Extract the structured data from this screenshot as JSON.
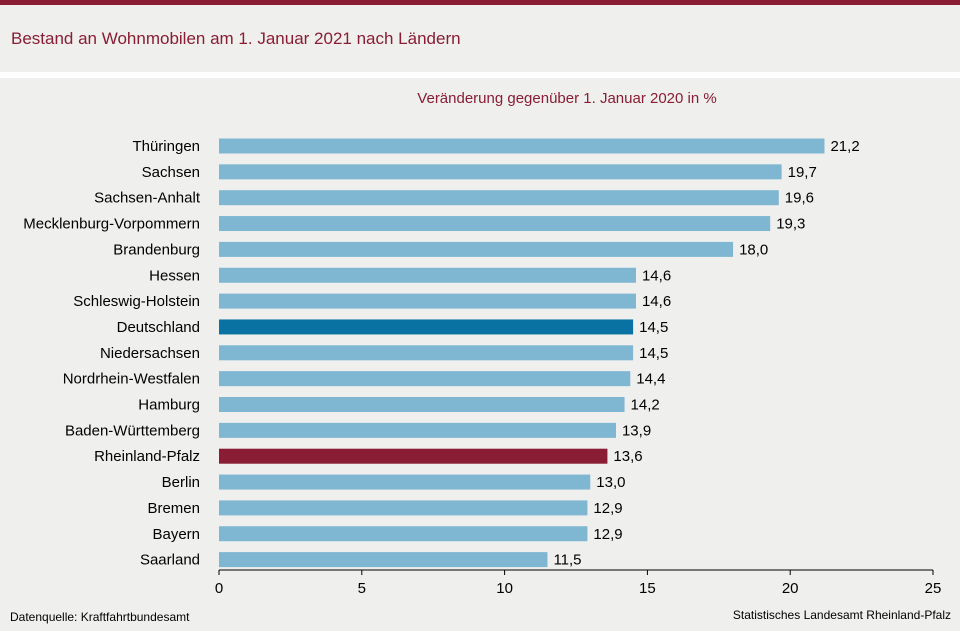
{
  "header": {
    "title": "Bestand an Wohnmobilen am 1. Januar 2021 nach Ländern"
  },
  "footer": {
    "source": "Datenquelle:  Kraftfahrtbundesamt",
    "publisher": "Statistisches Landesamt Rheinland-Pfalz"
  },
  "colors": {
    "brand": "#8a1c33",
    "bar_default": "#7fb6d2",
    "bar_germany": "#0a72a3",
    "bar_rlp": "#8a1c33"
  },
  "chart_data": {
    "type": "bar",
    "orientation": "horizontal",
    "title": "Veränderung  gegenüber  1. Januar 2020 in %",
    "xlabel": "",
    "ylabel": "",
    "xlim": [
      0,
      25
    ],
    "x_ticks": [
      0,
      5,
      10,
      15,
      20,
      25
    ],
    "grid": false,
    "categories": [
      "Thüringen",
      "Sachsen",
      "Sachsen-Anhalt",
      "Mecklenburg-Vorpommern",
      "Brandenburg",
      "Hessen",
      "Schleswig-Holstein",
      "Deutschland",
      "Niedersachsen",
      "Nordrhein-Westfalen",
      "Hamburg",
      "Baden-Württemberg",
      "Rheinland-Pfalz",
      "Berlin",
      "Bremen",
      "Bayern",
      "Saarland"
    ],
    "values": [
      21.2,
      19.7,
      19.6,
      19.3,
      18.0,
      14.6,
      14.6,
      14.5,
      14.5,
      14.4,
      14.2,
      13.9,
      13.6,
      13.0,
      12.9,
      12.9,
      11.5
    ],
    "value_labels": [
      "21,2",
      "19,7",
      "19,6",
      "19,3",
      "18,0",
      "14,6",
      "14,6",
      "14,5",
      "14,5",
      "14,4",
      "14,2",
      "13,9",
      "13,6",
      "13,0",
      "12,9",
      "12,9",
      "11,5"
    ],
    "highlight": {
      "Deutschland": "bar_germany",
      "Rheinland-Pfalz": "bar_rlp"
    }
  }
}
